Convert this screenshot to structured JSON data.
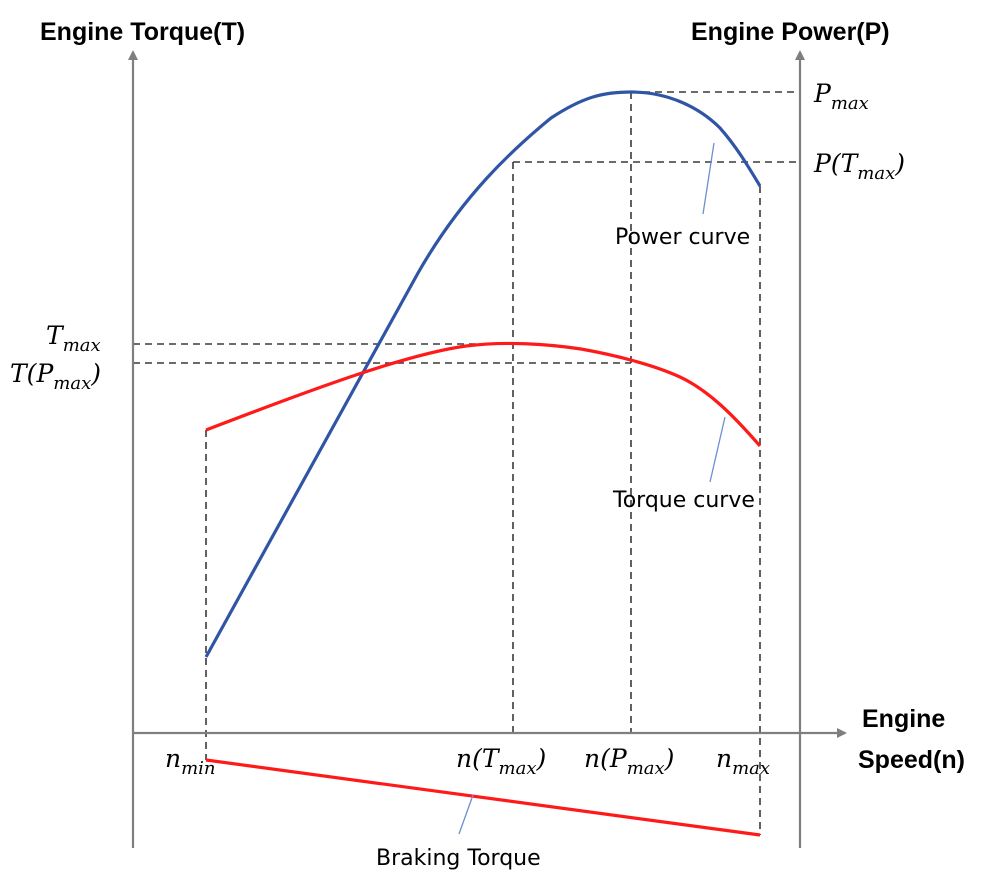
{
  "axes": {
    "left_title": "Engine Torque(T)",
    "right_title": "Engine Power(P)",
    "x_title_line1": "Engine",
    "x_title_line2": "Speed(n)"
  },
  "x_ticks": {
    "n_min": {
      "base": "n",
      "sub": "min"
    },
    "n_tmax": {
      "prefix": "n(",
      "base": "T",
      "sub": "max",
      "suffix": ")"
    },
    "n_pmax": {
      "prefix": "n(",
      "base": "P",
      "sub": "max",
      "suffix": ")"
    },
    "n_max": {
      "base": "n",
      "sub": "max"
    }
  },
  "left_ticks": {
    "t_max": {
      "base": "T",
      "sub": "max"
    },
    "t_pmax": {
      "prefix": "T(",
      "base": "P",
      "sub": "max",
      "suffix": ")"
    }
  },
  "right_ticks": {
    "p_max": {
      "base": "P",
      "sub": "max"
    },
    "p_tmax": {
      "prefix": "P(",
      "base": "T",
      "sub": "max",
      "suffix": ")"
    }
  },
  "curve_labels": {
    "power": "Power curve",
    "torque": "Torque curve",
    "braking": "Braking Torque"
  },
  "colors": {
    "power_curve": "#2f55a4",
    "torque_curve": "#ff1a1a",
    "braking_curve": "#ff1a1a",
    "axis": "#7f7f7f",
    "guide_lines": "#3a3a3a",
    "leader_lines": "#6e8fd2"
  }
}
